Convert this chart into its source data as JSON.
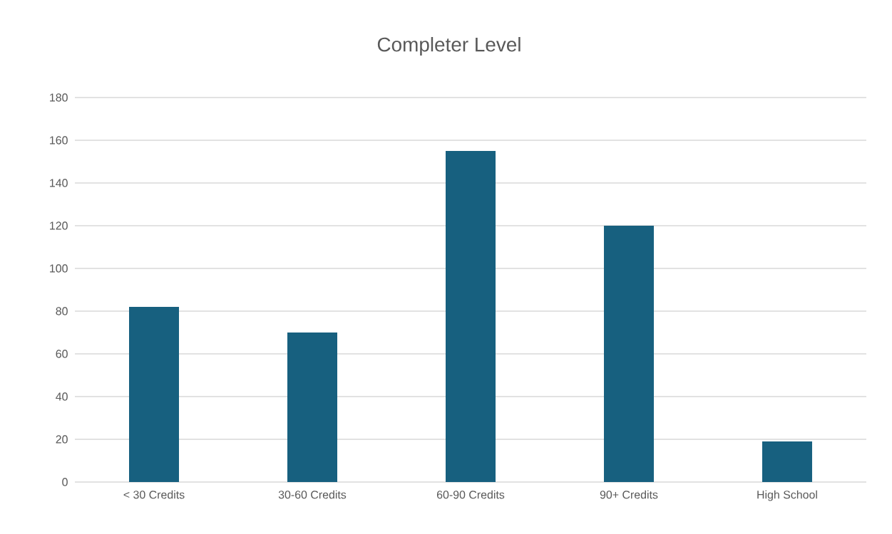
{
  "chart_data": {
    "type": "bar",
    "title": "Completer Level",
    "categories": [
      "< 30 Credits",
      "30-60 Credits",
      "60-90 Credits",
      "90+ Credits",
      "High School"
    ],
    "values": [
      82,
      70,
      155,
      120,
      19
    ],
    "color": "#17607f",
    "ylim": [
      0,
      180
    ],
    "yticks": [
      0,
      20,
      40,
      60,
      80,
      100,
      120,
      140,
      160,
      180
    ],
    "grid": "y"
  }
}
